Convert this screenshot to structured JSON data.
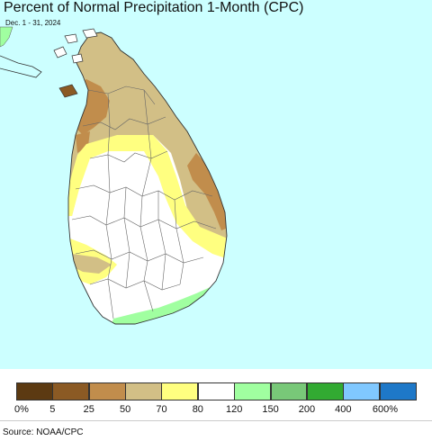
{
  "title": "Percent of Normal Precipitation 1-Month (CPC)",
  "subtitle": "Dec. 1 - 31, 2024",
  "source": "Source: NOAA/CPC",
  "map": {
    "ocean_color": "#ccffff",
    "land_base_color": "#ffffff",
    "region": "Sri Lanka"
  },
  "legend": {
    "colors": [
      "#5c3a12",
      "#8b5a24",
      "#c18d4c",
      "#d2bf86",
      "#ffff80",
      "#ffffff",
      "#a0ffa0",
      "#78c878",
      "#32aa32",
      "#80c8ff",
      "#1e78c8"
    ],
    "tick_labels": [
      "0%",
      "5",
      "25",
      "50",
      "70",
      "80",
      "120",
      "150",
      "200",
      "400",
      "600%"
    ]
  }
}
